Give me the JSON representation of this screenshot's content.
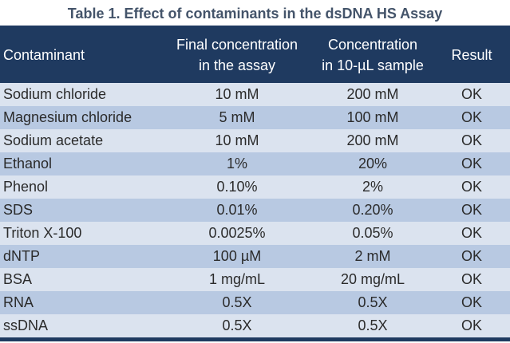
{
  "caption": "Table 1. Effect of contaminants in the dsDNA HS Assay",
  "columns": [
    "Contaminant",
    "Final concentration in the assay",
    "Concentration in 10-µL sample",
    "Result"
  ],
  "header_lines": {
    "col2_line1": "Final concentration",
    "col2_line2": "in the assay",
    "col3_line1": "Concentration",
    "col3_line2": "in 10-µL sample"
  },
  "rows": [
    {
      "contaminant": "Sodium chloride",
      "final": "10 mM",
      "sample": "200 mM",
      "result": "OK"
    },
    {
      "contaminant": "Magnesium chloride",
      "final": "5 mM",
      "sample": "100 mM",
      "result": "OK"
    },
    {
      "contaminant": "Sodium acetate",
      "final": "10 mM",
      "sample": "200 mM",
      "result": "OK"
    },
    {
      "contaminant": "Ethanol",
      "final": "1%",
      "sample": "20%",
      "result": "OK"
    },
    {
      "contaminant": "Phenol",
      "final": "0.10%",
      "sample": "2%",
      "result": "OK"
    },
    {
      "contaminant": "SDS",
      "final": "0.01%",
      "sample": "0.20%",
      "result": "OK"
    },
    {
      "contaminant": "Triton X-100",
      "final": "0.0025%",
      "sample": "0.05%",
      "result": "OK"
    },
    {
      "contaminant": "dNTP",
      "final": "100 µM",
      "sample": "2 mM",
      "result": "OK"
    },
    {
      "contaminant": "BSA",
      "final": "1 mg/mL",
      "sample": "20 mg/mL",
      "result": "OK"
    },
    {
      "contaminant": "RNA",
      "final": "0.5X",
      "sample": "0.5X",
      "result": "OK"
    },
    {
      "contaminant": "ssDNA",
      "final": "0.5X",
      "sample": "0.5X",
      "result": "OK"
    }
  ],
  "colors": {
    "header_bg": "#1f3a60",
    "row_light": "#dbe3ef",
    "row_dark": "#b8c9e2",
    "caption_text": "#44546a"
  }
}
